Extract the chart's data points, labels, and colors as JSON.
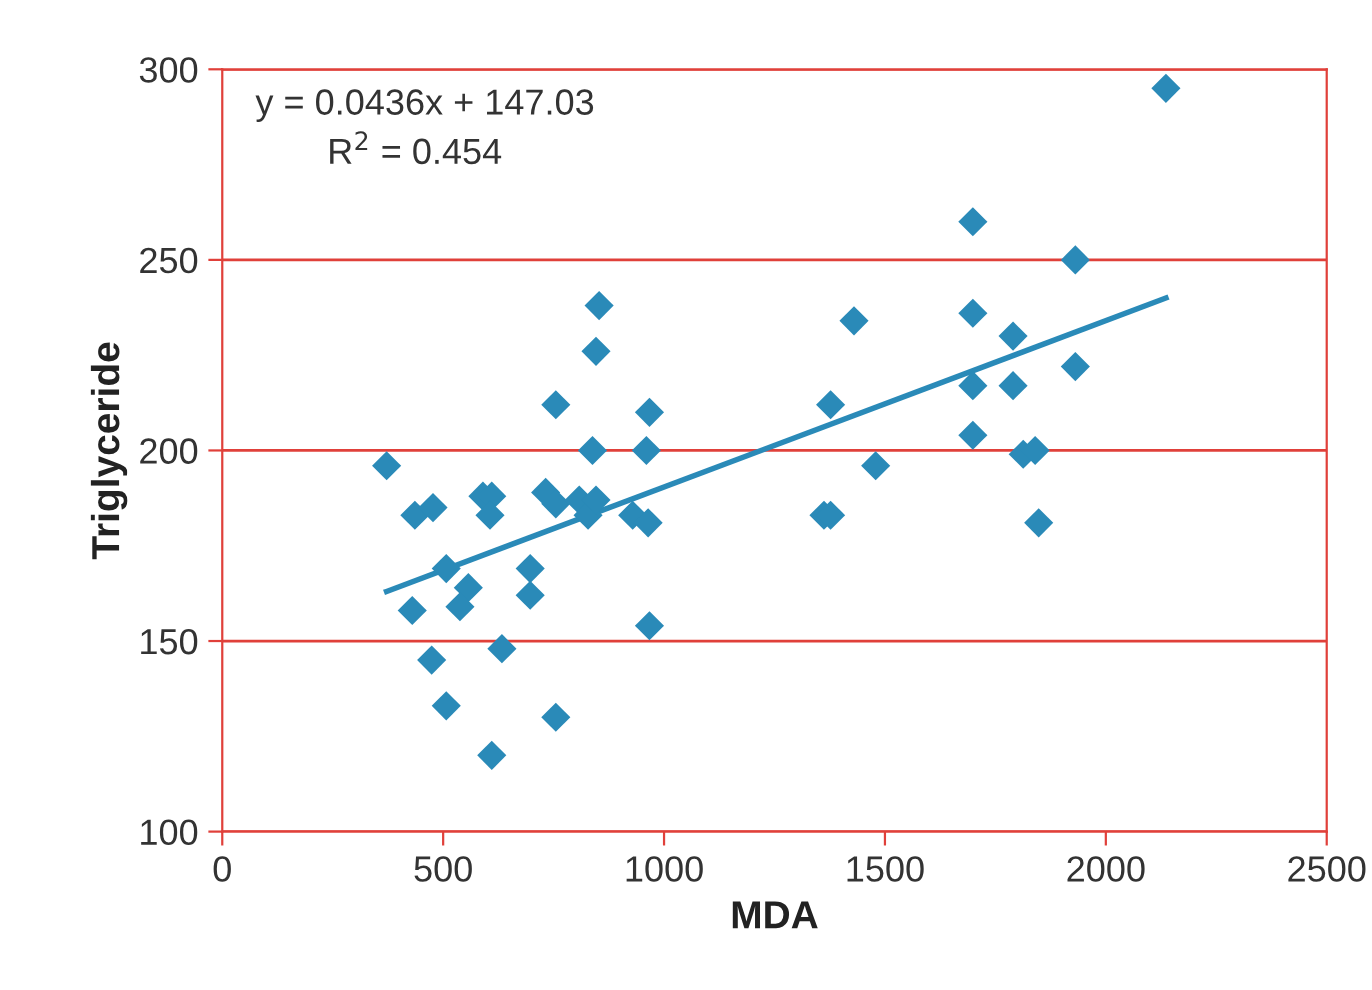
{
  "chart_data": {
    "type": "scatter",
    "xlabel": "MDA",
    "ylabel": "Triglyceride",
    "xlim": [
      0,
      2500
    ],
    "ylim": [
      100,
      300
    ],
    "xticks": [
      0,
      500,
      1000,
      1500,
      2000,
      2500
    ],
    "yticks": [
      100,
      150,
      200,
      250,
      300
    ],
    "grid": "y",
    "annotations": [
      "y = 0.0436x + 147.03",
      "R$^{2}$ = 0.454"
    ],
    "series": [
      {
        "marker": "diamond",
        "color": "#2a8ab8",
        "x": [
          372,
          436,
          477,
          507,
          590,
          610,
          606,
          557,
          538,
          430,
          474,
          507,
          633,
          610,
          697,
          697,
          755,
          732,
          755,
          755,
          808,
          828,
          846,
          838,
          846,
          853,
          929,
          964,
          960,
          967,
          967,
          1362,
          1377,
          1377,
          1430,
          1479,
          1699,
          1699,
          1699,
          1699,
          1790,
          1790,
          1813,
          1840,
          1848,
          1931,
          1931,
          2136
        ],
        "values": [
          196,
          183,
          185,
          169,
          188,
          188,
          183,
          164,
          159,
          158,
          145,
          133,
          148,
          120,
          169,
          162,
          130,
          189,
          186,
          212,
          187,
          183,
          187,
          200,
          226,
          238,
          183,
          181,
          200,
          210,
          154,
          183,
          183,
          212,
          234,
          196,
          260,
          236,
          217,
          204,
          230,
          217,
          199,
          200,
          181,
          250,
          222,
          295
        ]
      },
      {
        "type": "line",
        "color": "#2a8ab8",
        "x": [
          372,
          2136
        ],
        "values": [
          163,
          240
        ]
      }
    ]
  }
}
